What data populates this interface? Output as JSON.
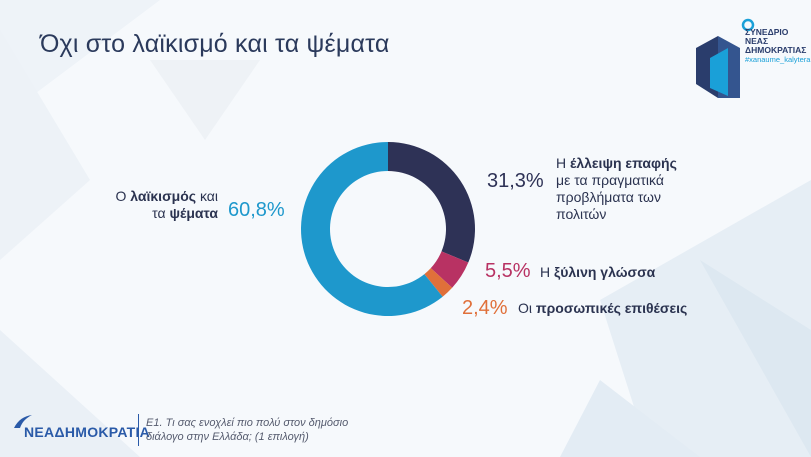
{
  "title": "Όχι στο λαϊκισμό και τα ψέματα",
  "logo": {
    "line1": "ΣΥΝΕΔΡΙΟ",
    "line2": "ΝΕΑΣ",
    "line3": "ΔΗΜΟΚΡΑΤΙΑΣ",
    "tag": "#xanaume_kalytera"
  },
  "footer": {
    "party_name": "ΝΕΑΔΗΜΟΚΡΑΤΙΑ",
    "question_line1": "Ε1. Τι σας ενοχλεί πιο πολύ στον δημόσιο",
    "question_line2": "διάλογο στην Ελλάδα; (1 επιλογή)"
  },
  "chart_data": {
    "type": "pie",
    "donut": true,
    "slices": [
      {
        "pct_label": "31,3%",
        "value": 31.3,
        "color": "#2e3256",
        "label_bold": "έλλειψη επαφής",
        "label_prefix": "Η",
        "label_rest1": "με τα πραγματικά",
        "label_rest2": "προβλήματα των",
        "label_rest3": "πολιτών"
      },
      {
        "pct_label": "5,5%",
        "value": 5.5,
        "color": "#b83263",
        "label_prefix": "Η",
        "label_rest1": "ξύλινη γλώσσα"
      },
      {
        "pct_label": "2,4%",
        "value": 2.4,
        "color": "#e0703a",
        "label_prefix": "Οι",
        "label_bold": "προσωπικές επιθέσεις"
      },
      {
        "pct_label": "60,8%",
        "value": 60.8,
        "color": "#1e98cc",
        "label_prefix": "Ο",
        "label_bold": "λαϊκισμός",
        "label_mid": "και",
        "label_line2_prefix": "τα",
        "label_line2_bold": "ψέματα"
      }
    ]
  }
}
